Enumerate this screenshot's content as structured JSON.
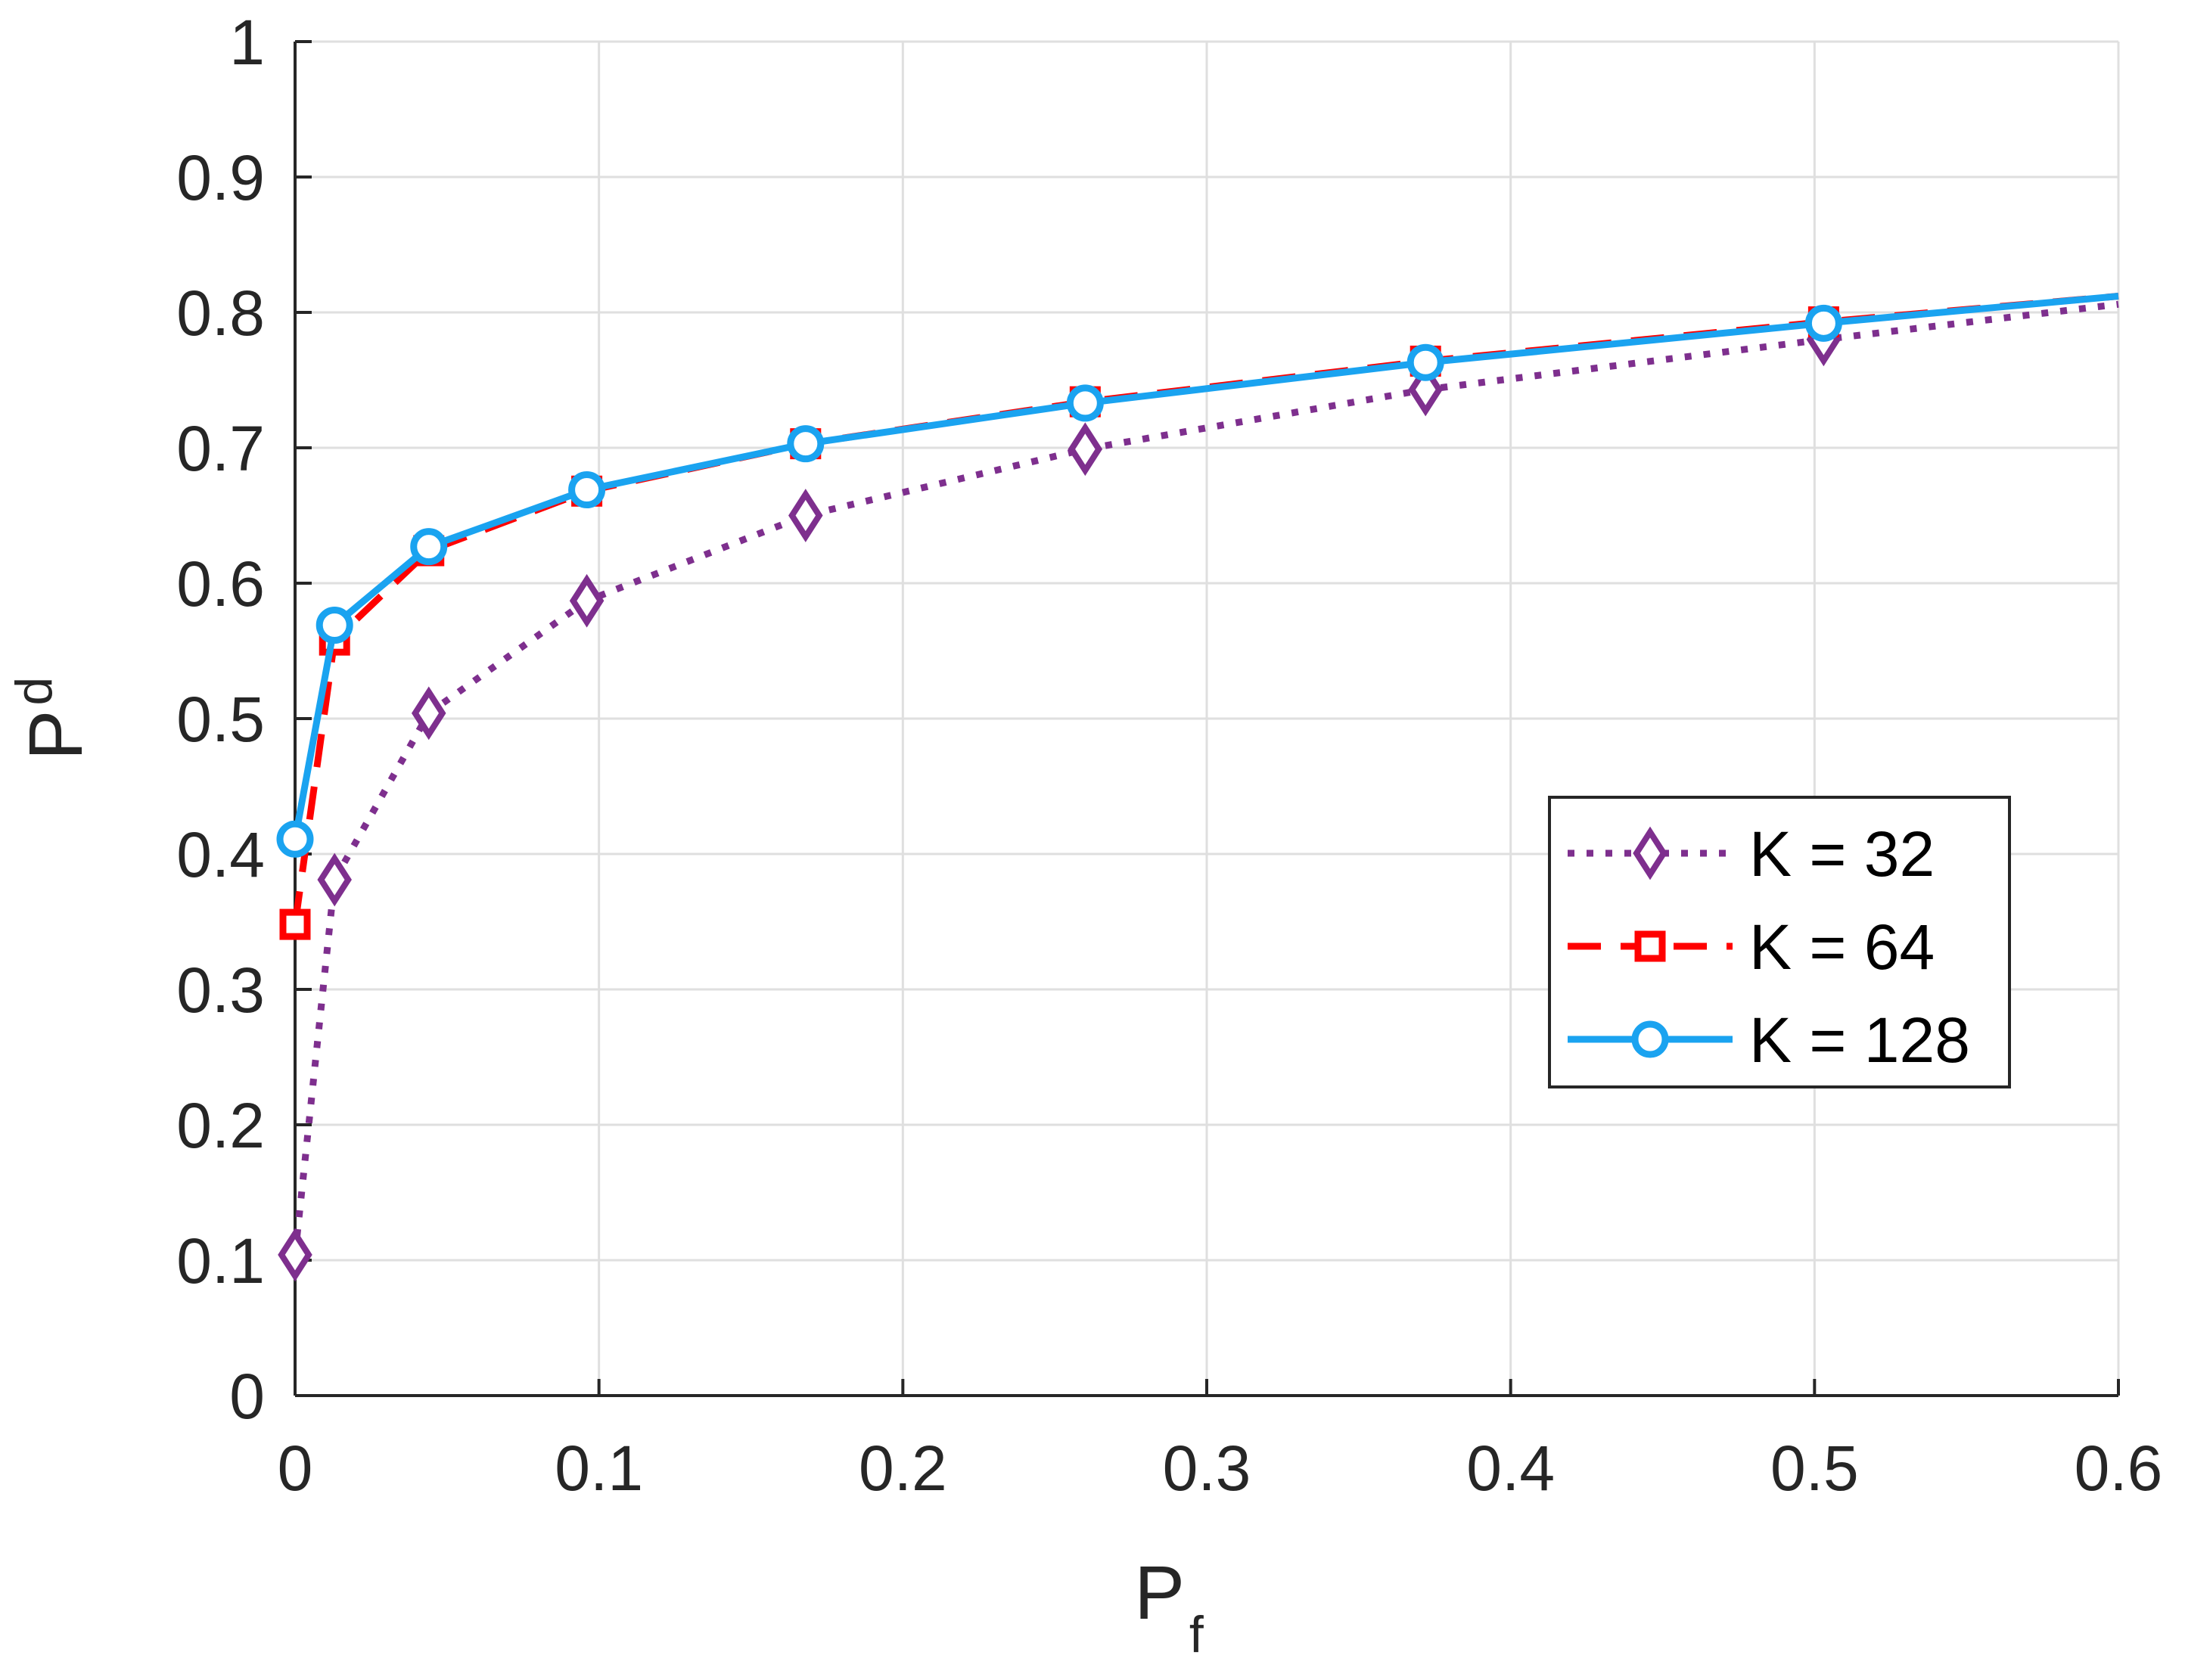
{
  "chart_data": {
    "type": "line",
    "xlabel": {
      "main": "P",
      "sub": "f"
    },
    "ylabel": {
      "main": "P",
      "sub": "d"
    },
    "xlim": [
      0,
      0.6
    ],
    "ylim": [
      0,
      1
    ],
    "xticks": [
      "0",
      "0.1",
      "0.2",
      "0.3",
      "0.4",
      "0.5",
      "0.6"
    ],
    "yticks": [
      "0",
      "0.1",
      "0.2",
      "0.3",
      "0.4",
      "0.5",
      "0.6",
      "0.7",
      "0.8",
      "0.9",
      "1"
    ],
    "grid": true,
    "legend_position": "right-middle",
    "series": [
      {
        "name": "K = 32",
        "color": "#7E2F8E",
        "dash": "dotted",
        "marker": "diamond",
        "x": [
          0,
          0.013,
          0.044,
          0.096,
          0.168,
          0.26,
          0.372,
          0.503,
          0.6
        ],
        "y": [
          0.104,
          0.381,
          0.504,
          0.587,
          0.65,
          0.699,
          0.743,
          0.78,
          0.806
        ]
      },
      {
        "name": "K = 64",
        "color": "#FF0000",
        "dash": "dashed",
        "marker": "square",
        "x": [
          0,
          0.013,
          0.044,
          0.096,
          0.168,
          0.26,
          0.372,
          0.503,
          0.6
        ],
        "y": [
          0.348,
          0.558,
          0.624,
          0.668,
          0.703,
          0.734,
          0.764,
          0.793,
          0.812
        ]
      },
      {
        "name": "K = 128",
        "color": "#1AA3F0",
        "dash": "solid",
        "marker": "circle",
        "x": [
          0,
          0.013,
          0.044,
          0.096,
          0.168,
          0.26,
          0.372,
          0.503,
          0.6
        ],
        "y": [
          0.411,
          0.569,
          0.627,
          0.669,
          0.703,
          0.733,
          0.763,
          0.792,
          0.812
        ]
      }
    ]
  }
}
